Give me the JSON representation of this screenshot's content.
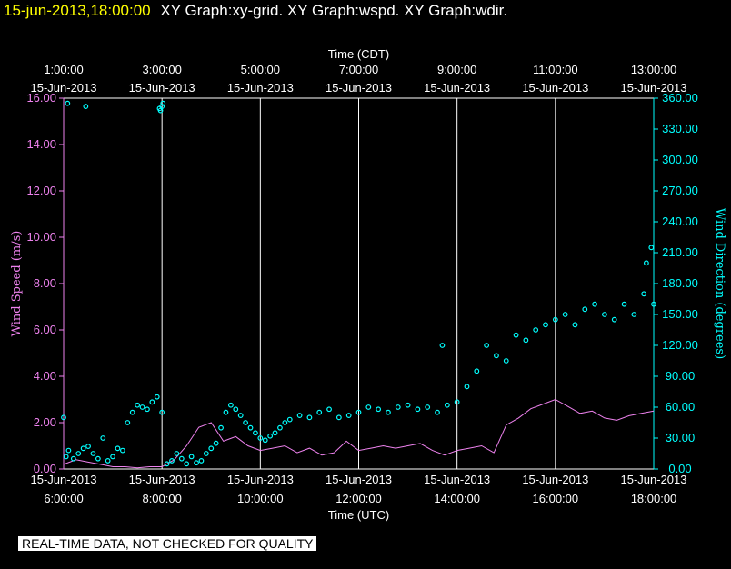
{
  "header": {
    "timestamp": "15-jun-2013,18:00:00",
    "graphs": "XY Graph:xy-grid.  XY Graph:wspd.  XY Graph:wdir."
  },
  "notice": "REAL-TIME DATA, NOT CHECKED FOR QUALITY",
  "colors": {
    "background": "#000000",
    "header_time": "#ffff00",
    "grid": "#ffffff",
    "wind_speed": "#ee82ee",
    "wind_direction": "#00ffff"
  },
  "chart_data": {
    "type": "line",
    "x_top_label": "Time (CDT)",
    "x_bottom_label": "Time (UTC)",
    "x_range_utc_hours": [
      6,
      18
    ],
    "x_bottom_ticks": [
      {
        "hour": 6,
        "date": "15-Jun-2013",
        "time": "6:00:00"
      },
      {
        "hour": 8,
        "date": "15-Jun-2013",
        "time": "8:00:00"
      },
      {
        "hour": 10,
        "date": "15-Jun-2013",
        "time": "10:00:00"
      },
      {
        "hour": 12,
        "date": "15-Jun-2013",
        "time": "12:00:00"
      },
      {
        "hour": 14,
        "date": "15-Jun-2013",
        "time": "14:00:00"
      },
      {
        "hour": 16,
        "date": "15-Jun-2013",
        "time": "16:00:00"
      },
      {
        "hour": 18,
        "date": "15-Jun-2013",
        "time": "18:00:00"
      }
    ],
    "x_top_ticks": [
      {
        "hour": 6,
        "time": "1:00:00",
        "date": "15-Jun-2013"
      },
      {
        "hour": 8,
        "time": "3:00:00",
        "date": "15-Jun-2013"
      },
      {
        "hour": 10,
        "time": "5:00:00",
        "date": "15-Jun-2013"
      },
      {
        "hour": 12,
        "time": "7:00:00",
        "date": "15-Jun-2013"
      },
      {
        "hour": 14,
        "time": "9:00:00",
        "date": "15-Jun-2013"
      },
      {
        "hour": 16,
        "time": "11:00:00",
        "date": "15-Jun-2013"
      },
      {
        "hour": 18,
        "time": "13:00:00",
        "date": "15-Jun-2013"
      }
    ],
    "y_left": {
      "label": "Wind Speed (m/s)",
      "range": [
        0,
        16
      ],
      "ticks": [
        "0.00",
        "2.00",
        "4.00",
        "6.00",
        "8.00",
        "10.00",
        "12.00",
        "14.00",
        "16.00"
      ]
    },
    "y_right": {
      "label": "Wind Direction (degrees)",
      "range": [
        0,
        360
      ],
      "ticks": [
        "0.00",
        "30.00",
        "60.00",
        "90.00",
        "120.00",
        "150.00",
        "180.00",
        "210.00",
        "240.00",
        "270.00",
        "300.00",
        "330.00",
        "360.00"
      ]
    },
    "series": [
      {
        "name": "Wind Speed",
        "axis": "left",
        "style": "line",
        "x": [
          6.0,
          6.25,
          6.5,
          6.75,
          7.0,
          7.25,
          7.5,
          7.75,
          8.0,
          8.25,
          8.5,
          8.75,
          9.0,
          9.25,
          9.5,
          9.75,
          10.0,
          10.25,
          10.5,
          10.75,
          11.0,
          11.25,
          11.5,
          11.75,
          12.0,
          12.25,
          12.5,
          12.75,
          13.0,
          13.25,
          13.5,
          13.75,
          14.0,
          14.25,
          14.5,
          14.75,
          15.0,
          15.25,
          15.5,
          15.75,
          16.0,
          16.25,
          16.5,
          16.75,
          17.0,
          17.25,
          17.5,
          17.75,
          18.0
        ],
        "y": [
          0.2,
          0.4,
          0.3,
          0.2,
          0.1,
          0.1,
          0.05,
          0.1,
          0.1,
          0.4,
          1.0,
          1.8,
          2.0,
          1.2,
          1.4,
          1.0,
          0.8,
          0.9,
          1.0,
          0.7,
          0.9,
          0.6,
          0.7,
          1.2,
          0.8,
          0.9,
          1.0,
          0.9,
          1.0,
          1.1,
          0.8,
          0.6,
          0.8,
          0.9,
          1.0,
          0.7,
          1.9,
          2.2,
          2.6,
          2.8,
          3.0,
          2.7,
          2.4,
          2.5,
          2.2,
          2.1,
          2.3,
          2.4,
          2.5
        ]
      },
      {
        "name": "Wind Direction",
        "axis": "right",
        "style": "points",
        "x": [
          6.0,
          6.05,
          6.1,
          6.2,
          6.3,
          6.4,
          6.5,
          6.6,
          6.7,
          6.8,
          6.9,
          7.0,
          7.1,
          7.2,
          7.3,
          7.4,
          7.5,
          7.6,
          7.7,
          7.8,
          7.9,
          8.0,
          8.1,
          8.2,
          8.3,
          8.4,
          8.5,
          8.6,
          8.7,
          8.8,
          8.9,
          9.0,
          9.1,
          9.2,
          9.3,
          9.4,
          9.5,
          9.6,
          9.7,
          9.8,
          9.9,
          10.0,
          10.1,
          10.2,
          10.3,
          10.4,
          10.5,
          10.6,
          10.8,
          11.0,
          11.2,
          11.4,
          11.6,
          11.8,
          12.0,
          12.2,
          12.4,
          12.6,
          12.8,
          13.0,
          13.2,
          13.4,
          13.6,
          13.8,
          14.0,
          14.2,
          14.4,
          14.6,
          14.8,
          15.0,
          15.2,
          15.4,
          15.6,
          15.8,
          16.0,
          16.2,
          16.4,
          16.6,
          16.8,
          17.0,
          17.2,
          17.4,
          17.6,
          17.8,
          18.0,
          6.08,
          6.45,
          7.95,
          7.97,
          8.0,
          8.02,
          13.7,
          17.85,
          17.95
        ],
        "y": [
          50,
          12,
          18,
          10,
          15,
          20,
          22,
          15,
          10,
          30,
          8,
          12,
          20,
          18,
          45,
          55,
          62,
          60,
          58,
          65,
          70,
          55,
          5,
          8,
          15,
          10,
          5,
          12,
          6,
          8,
          15,
          20,
          25,
          40,
          55,
          62,
          58,
          52,
          45,
          40,
          35,
          30,
          28,
          32,
          35,
          40,
          45,
          48,
          52,
          50,
          55,
          58,
          50,
          52,
          55,
          60,
          58,
          55,
          60,
          62,
          58,
          60,
          55,
          62,
          65,
          80,
          95,
          120,
          110,
          105,
          130,
          125,
          135,
          140,
          145,
          150,
          140,
          155,
          160,
          150,
          145,
          160,
          150,
          170,
          160,
          355,
          352,
          350,
          348,
          352,
          355,
          120,
          200,
          215
        ]
      }
    ]
  }
}
